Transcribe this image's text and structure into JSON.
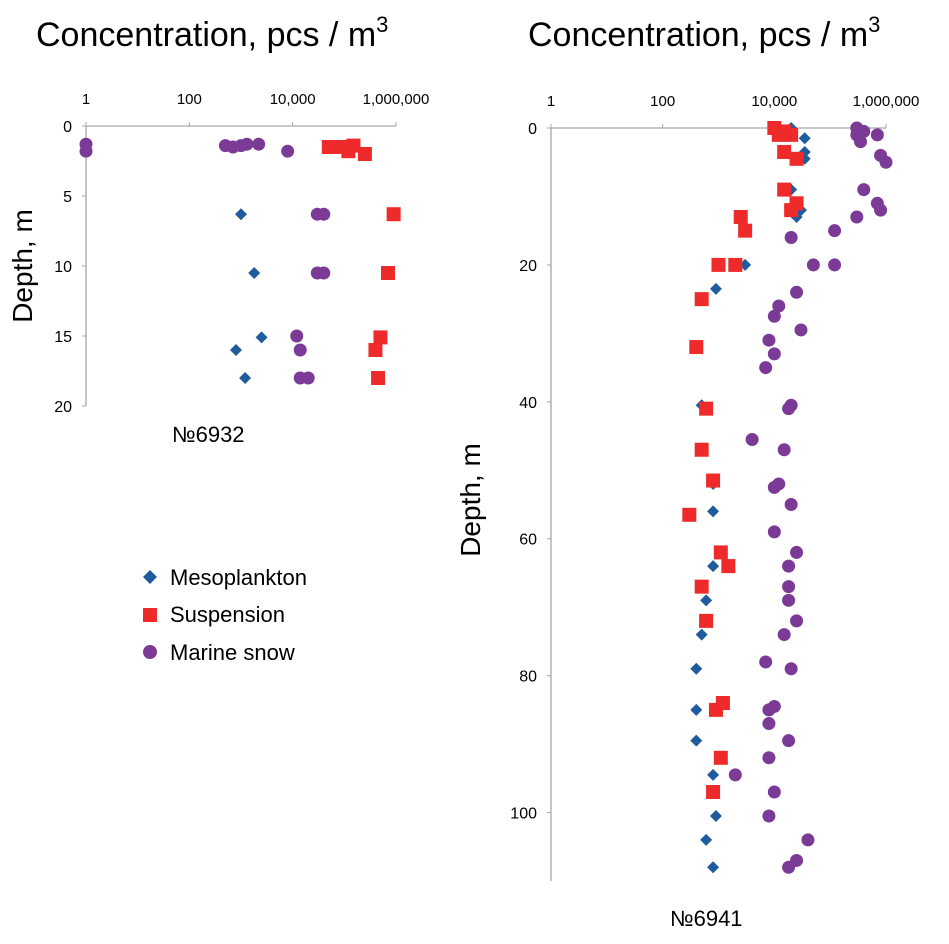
{
  "colors": {
    "mesoplankton": "#1f5c9e",
    "suspension": "#ee2a2a",
    "marine_snow": "#7b3a96"
  },
  "legend": {
    "placement": "left-middle",
    "items": [
      {
        "key": "mesoplankton",
        "label": "Mesoplankton",
        "marker": "diamond"
      },
      {
        "key": "suspension",
        "label": "Suspension",
        "marker": "square"
      },
      {
        "key": "marine_snow",
        "label": "Marine snow",
        "marker": "circle"
      }
    ]
  },
  "chart_data": [
    {
      "type": "scatter",
      "title": "Concentration, pcs / m",
      "title_sup": "3",
      "ylabel": "Depth, m",
      "station_label": "№6932",
      "x_scale": "log",
      "xlim": [
        1,
        1000000
      ],
      "x_ticks": [
        1,
        100,
        10000,
        1000000
      ],
      "x_tick_labels": [
        "1",
        "100",
        "10,000",
        "1,000,000"
      ],
      "y_inverted": true,
      "ylim": [
        0,
        20
      ],
      "y_ticks": [
        0,
        5,
        10,
        15,
        20
      ],
      "y_tick_labels": [
        "0",
        "5",
        "10",
        "15",
        "20"
      ],
      "series": [
        {
          "key": "mesoplankton",
          "name": "Mesoplankton",
          "points": [
            [
              1000,
              6.3
            ],
            [
              1800,
              10.5
            ],
            [
              2500,
              15.1
            ],
            [
              800,
              16
            ],
            [
              1200,
              18
            ]
          ]
        },
        {
          "key": "suspension",
          "name": "Suspension",
          "points": [
            [
              50000,
              1.5
            ],
            [
              100000,
              1.5
            ],
            [
              150000,
              1.4
            ],
            [
              250000,
              2
            ],
            [
              120000,
              1.8
            ],
            [
              70000,
              1.5
            ],
            [
              900000,
              6.3
            ],
            [
              700000,
              10.5
            ],
            [
              500000,
              15.1
            ],
            [
              400000,
              16
            ],
            [
              450000,
              18
            ]
          ]
        },
        {
          "key": "marine_snow",
          "name": "Marine snow",
          "points": [
            [
              1,
              1.3
            ],
            [
              1,
              1.8
            ],
            [
              500,
              1.4
            ],
            [
              700,
              1.5
            ],
            [
              1000,
              1.4
            ],
            [
              1300,
              1.3
            ],
            [
              2200,
              1.3
            ],
            [
              8000,
              1.8
            ],
            [
              30000,
              6.3
            ],
            [
              40000,
              6.3
            ],
            [
              30000,
              10.5
            ],
            [
              40000,
              10.5
            ],
            [
              12000,
              15
            ],
            [
              14000,
              16
            ],
            [
              14000,
              18
            ],
            [
              20000,
              18
            ]
          ]
        }
      ]
    },
    {
      "type": "scatter",
      "title": "Concentration, pcs / m",
      "title_sup": "3",
      "ylabel": "Depth, m",
      "station_label": "№6941",
      "x_scale": "log",
      "xlim": [
        1,
        1000000
      ],
      "x_ticks": [
        1,
        100,
        10000,
        1000000
      ],
      "x_tick_labels": [
        "1",
        "100",
        "10,000",
        "1,000,000"
      ],
      "y_inverted": true,
      "ylim": [
        0,
        110
      ],
      "y_ticks": [
        0,
        20,
        40,
        60,
        80,
        100
      ],
      "y_tick_labels": [
        "0",
        "20",
        "40",
        "60",
        "80",
        "100"
      ],
      "series": [
        {
          "key": "mesoplankton",
          "name": "Mesoplankton",
          "points": [
            [
              20000,
              0
            ],
            [
              35000,
              1.5
            ],
            [
              35000,
              3.5
            ],
            [
              35000,
              4.5
            ],
            [
              20000,
              9
            ],
            [
              30000,
              12
            ],
            [
              25000,
              13
            ],
            [
              3000,
              20
            ],
            [
              900,
              23.5
            ],
            [
              500,
              40.5
            ],
            [
              800,
              52
            ],
            [
              800,
              56
            ],
            [
              800,
              64
            ],
            [
              600,
              69
            ],
            [
              500,
              74
            ],
            [
              400,
              79
            ],
            [
              400,
              85
            ],
            [
              400,
              89.5
            ],
            [
              800,
              94.5
            ],
            [
              900,
              100.5
            ],
            [
              600,
              104
            ],
            [
              800,
              108
            ]
          ]
        },
        {
          "key": "suspension",
          "name": "Suspension",
          "points": [
            [
              10000,
              0
            ],
            [
              15000,
              0.5
            ],
            [
              12000,
              1
            ],
            [
              20000,
              1
            ],
            [
              15000,
              3.5
            ],
            [
              25000,
              4.5
            ],
            [
              15000,
              9
            ],
            [
              20000,
              12
            ],
            [
              25000,
              11
            ],
            [
              2500,
              13
            ],
            [
              3000,
              15
            ],
            [
              1000,
              20
            ],
            [
              2000,
              20
            ],
            [
              500,
              25
            ],
            [
              400,
              32
            ],
            [
              600,
              41
            ],
            [
              500,
              47
            ],
            [
              800,
              51.5
            ],
            [
              300,
              56.5
            ],
            [
              1100,
              62
            ],
            [
              1500,
              64
            ],
            [
              500,
              67
            ],
            [
              600,
              72
            ],
            [
              1200,
              84
            ],
            [
              900,
              85
            ],
            [
              1100,
              92
            ],
            [
              800,
              97
            ]
          ]
        },
        {
          "key": "marine_snow",
          "name": "Marine snow",
          "points": [
            [
              300000,
              0
            ],
            [
              400000,
              0.5
            ],
            [
              300000,
              1
            ],
            [
              700000,
              1
            ],
            [
              350000,
              2
            ],
            [
              800000,
              4
            ],
            [
              1000000,
              5
            ],
            [
              400000,
              9
            ],
            [
              700000,
              11
            ],
            [
              800000,
              12
            ],
            [
              300000,
              13
            ],
            [
              120000,
              15
            ],
            [
              50000,
              20
            ],
            [
              120000,
              20
            ],
            [
              20000,
              16
            ],
            [
              25000,
              24
            ],
            [
              12000,
              26
            ],
            [
              30000,
              29.5
            ],
            [
              10000,
              27.5
            ],
            [
              8000,
              31
            ],
            [
              10000,
              33
            ],
            [
              7000,
              35
            ],
            [
              20000,
              40.5
            ],
            [
              18000,
              41
            ],
            [
              4000,
              45.5
            ],
            [
              15000,
              47
            ],
            [
              12000,
              52
            ],
            [
              10000,
              52.5
            ],
            [
              20000,
              55
            ],
            [
              10000,
              59
            ],
            [
              25000,
              62
            ],
            [
              18000,
              64
            ],
            [
              18000,
              67
            ],
            [
              18000,
              69
            ],
            [
              25000,
              72
            ],
            [
              15000,
              74
            ],
            [
              7000,
              78
            ],
            [
              20000,
              79
            ],
            [
              10000,
              84.5
            ],
            [
              8000,
              85
            ],
            [
              8000,
              87
            ],
            [
              18000,
              89.5
            ],
            [
              8000,
              92
            ],
            [
              2000,
              94.5
            ],
            [
              10000,
              97
            ],
            [
              8000,
              100.5
            ],
            [
              40000,
              104
            ],
            [
              25000,
              107
            ],
            [
              18000,
              108
            ]
          ]
        }
      ]
    }
  ]
}
